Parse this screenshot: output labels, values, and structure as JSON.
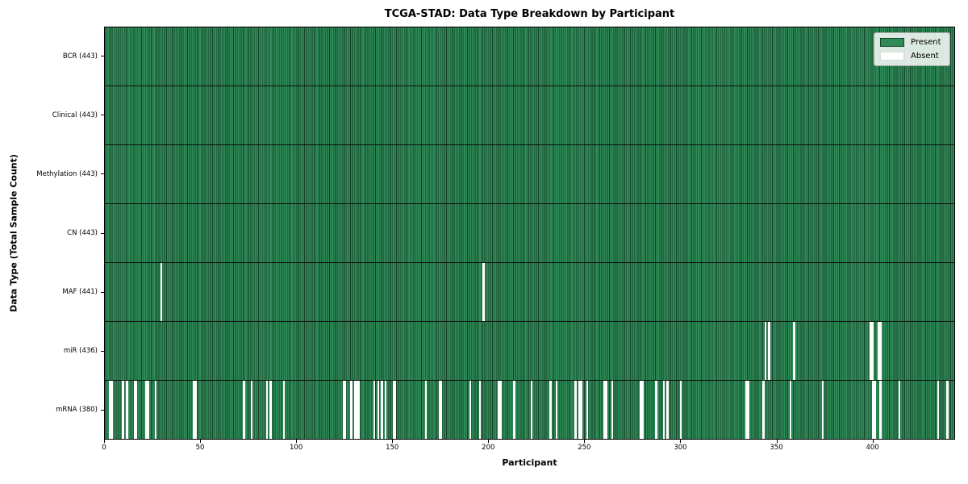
{
  "title": "TCGA-STAD: Data Type Breakdown by Participant",
  "x_axis_title": "Participant",
  "y_axis_title": "Data Type (Total Sample Count)",
  "legend": {
    "present_label": "Present",
    "absent_label": "Absent"
  },
  "colors": {
    "present": "#2E8B57",
    "present_edge": "#15432a",
    "absent": "#FFFFFF",
    "row_separator": "#0d120e"
  },
  "chart_data": {
    "type": "heatmap",
    "title": "TCGA-STAD: Data Type Breakdown by Participant",
    "xlabel": "Participant",
    "ylabel": "Data Type (Total Sample Count)",
    "legend_entries": [
      "Present",
      "Absent"
    ],
    "legend_position": "upper right",
    "n_participants": 443,
    "xlim": [
      0,
      443
    ],
    "x_ticks": [
      0,
      50,
      100,
      150,
      200,
      250,
      300,
      350,
      400
    ],
    "rows": [
      {
        "key": "bcr",
        "label": "BCR (443)",
        "data_type": "BCR",
        "total": 443,
        "absent": []
      },
      {
        "key": "clinical",
        "label": "Clinical (443)",
        "data_type": "Clinical",
        "total": 443,
        "absent": []
      },
      {
        "key": "methylation",
        "label": "Methylation (443)",
        "data_type": "Methylation",
        "total": 443,
        "absent": []
      },
      {
        "key": "cn",
        "label": "CN (443)",
        "data_type": "CN",
        "total": 443,
        "absent": []
      },
      {
        "key": "maf",
        "label": "MAF (441)",
        "data_type": "MAF",
        "total": 441,
        "absent": [
          29,
          197
        ]
      },
      {
        "key": "mir",
        "label": "miR (436)",
        "data_type": "miR",
        "total": 436,
        "absent": [
          344,
          346,
          359,
          399,
          400,
          403,
          404
        ]
      },
      {
        "key": "mrna",
        "label": "mRNA (380)",
        "data_type": "mRNA",
        "total": 380,
        "absent": [
          2,
          3,
          9,
          11,
          15,
          16,
          21,
          22,
          26,
          46,
          47,
          72,
          76,
          84,
          86,
          93,
          124,
          125,
          128,
          130,
          131,
          132,
          140,
          142,
          144,
          146,
          150,
          151,
          167,
          174,
          175,
          190,
          195,
          205,
          206,
          213,
          222,
          232,
          235,
          245,
          247,
          248,
          251,
          260,
          261,
          264,
          279,
          280,
          287,
          291,
          293,
          300,
          334,
          335,
          343,
          357,
          374,
          400,
          401,
          404,
          414,
          434,
          439
        ]
      }
    ]
  }
}
